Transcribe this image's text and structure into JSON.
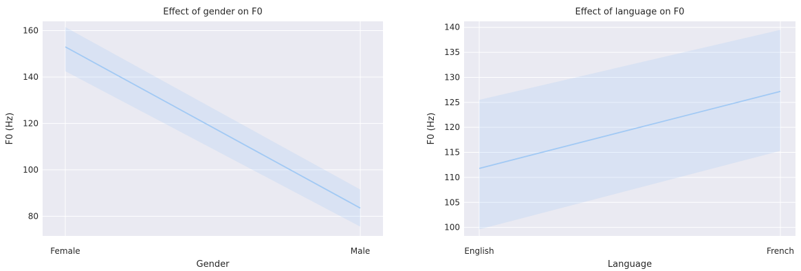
{
  "chart_data": [
    {
      "type": "line",
      "title": "Effect of gender on F0",
      "xlabel": "Gender",
      "ylabel": "F0 (Hz)",
      "categories": [
        "Female",
        "Male"
      ],
      "values": [
        153,
        83.5
      ],
      "ci_lower": [
        142.5,
        75.5
      ],
      "ci_upper": [
        161.5,
        91.5
      ],
      "ylim": [
        71.5,
        164
      ],
      "yticks": [
        80,
        100,
        120,
        140,
        160
      ],
      "grid": true,
      "line_color": "#a1c9f4",
      "band_color": "#a1c9f4"
    },
    {
      "type": "line",
      "title": "Effect of language on F0",
      "xlabel": "Language",
      "ylabel": "F0 (Hz)",
      "categories": [
        "English",
        "French"
      ],
      "values": [
        111.8,
        127.2
      ],
      "ci_lower": [
        99.6,
        115.3
      ],
      "ci_upper": [
        125.5,
        139.5
      ],
      "ylim": [
        98.3,
        141.2
      ],
      "yticks": [
        100,
        105,
        110,
        115,
        120,
        125,
        130,
        135,
        140
      ],
      "grid": true,
      "line_color": "#a1c9f4",
      "band_color": "#a1c9f4"
    }
  ],
  "style": {
    "background": "#eaeaf2",
    "grid_color": "#ffffff",
    "text_color": "#262626"
  }
}
